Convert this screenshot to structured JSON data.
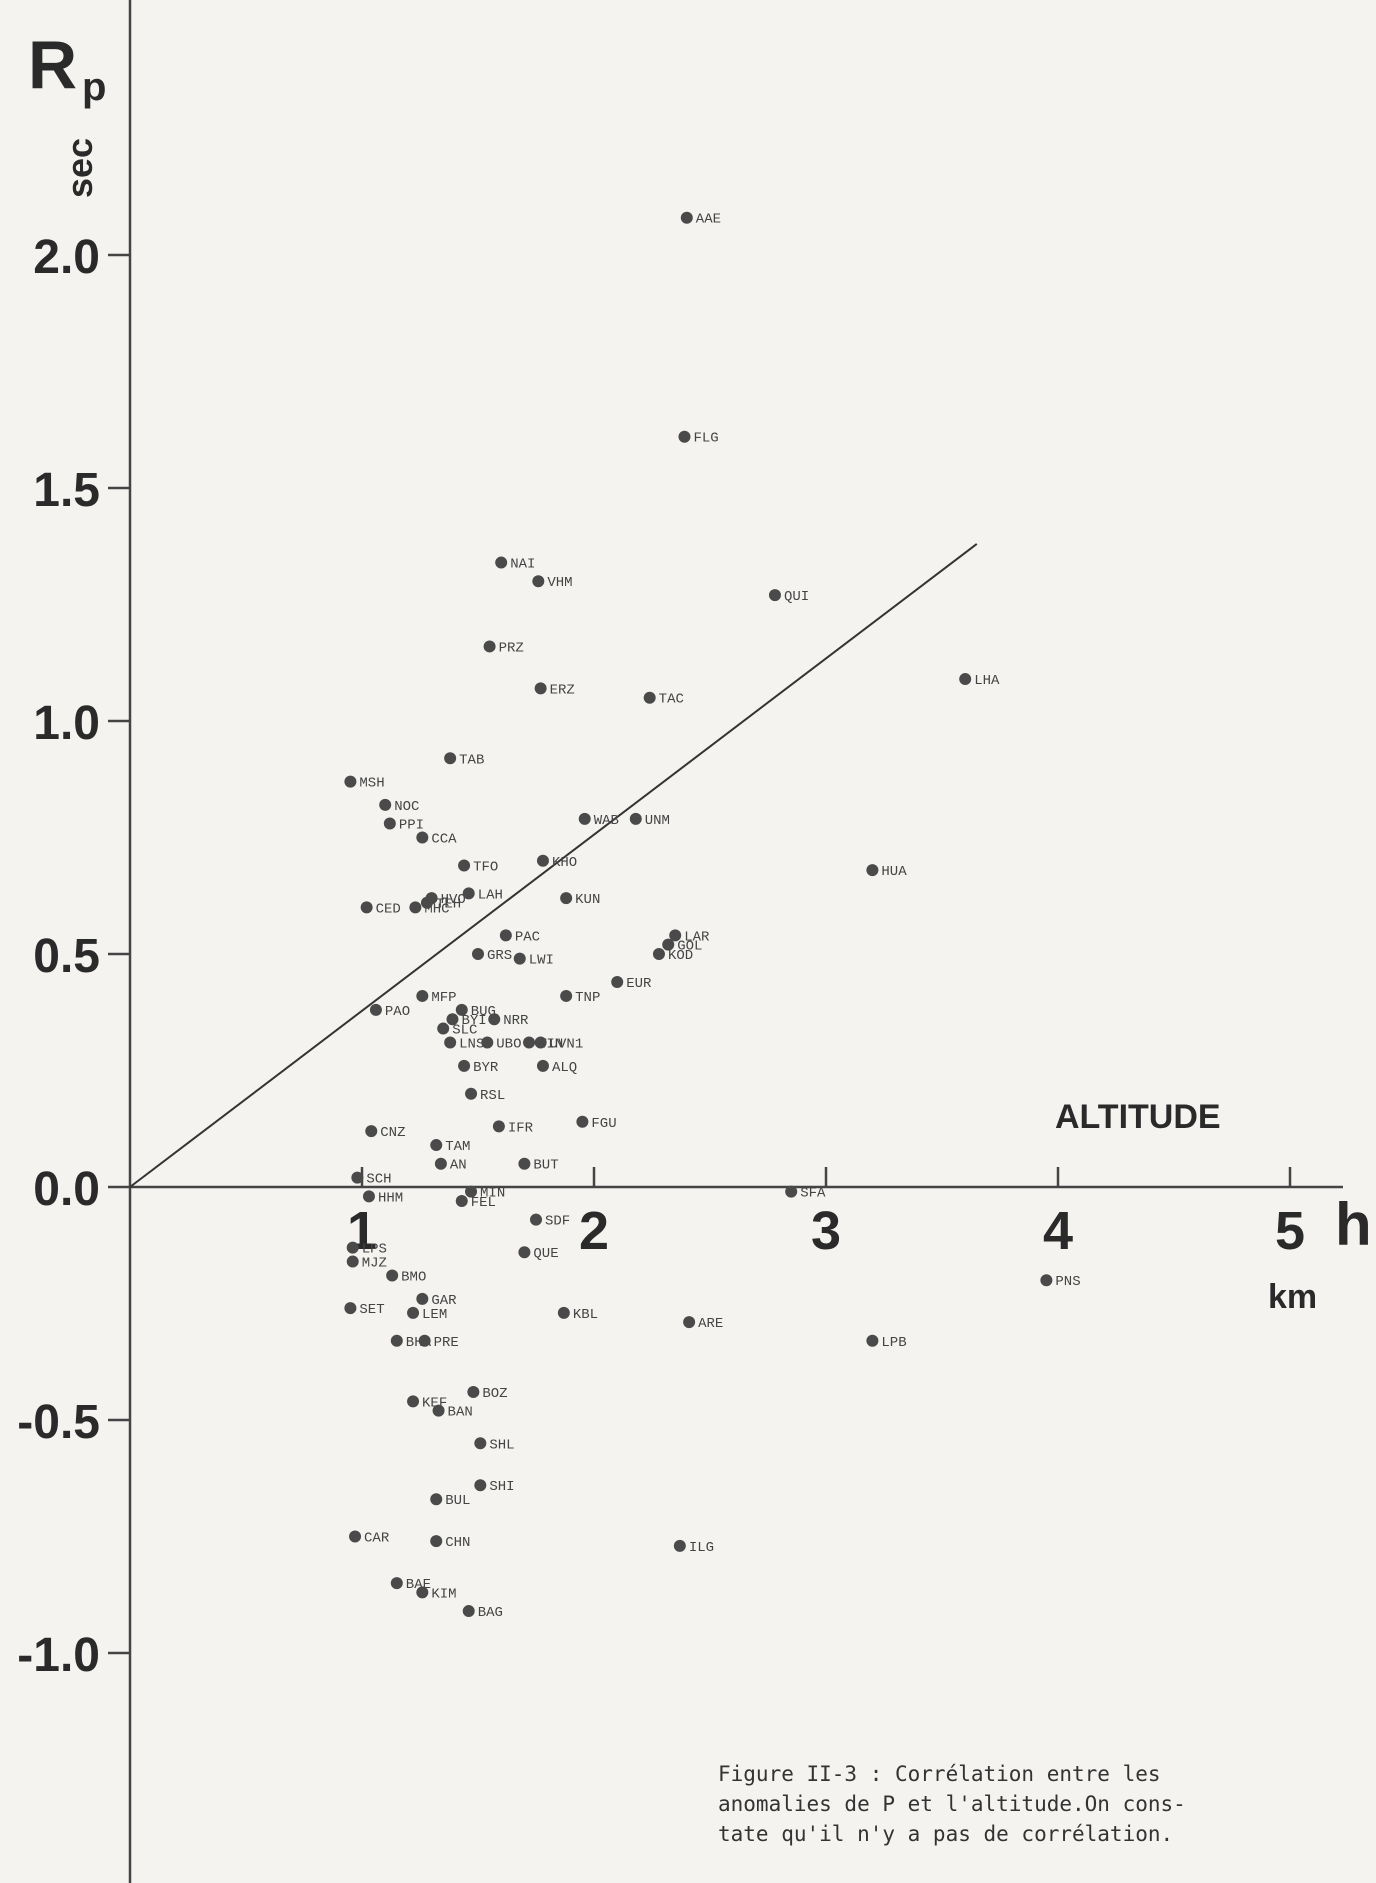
{
  "chart_data": {
    "type": "scatter",
    "y_axis_label_main": "R",
    "y_axis_label_sub": "p",
    "y_unit": "sec",
    "x_axis_title": "ALTITUDE",
    "x_axis_symbol": "h",
    "x_unit": "km",
    "y_ticks": [
      "2.0",
      "1.5",
      "1.0",
      "0.5",
      "0.0",
      "-0.5",
      "-1.0"
    ],
    "x_ticks": [
      "1",
      "2",
      "3",
      "4",
      "5"
    ],
    "ylim": [
      -1.5,
      2.5
    ],
    "xlim": [
      0,
      5.3
    ],
    "grid": false,
    "trend_line": {
      "x": [
        0,
        3.65
      ],
      "y": [
        0,
        1.38
      ]
    },
    "points": [
      {
        "label": "AAE",
        "x": 2.4,
        "y": 2.08
      },
      {
        "label": "FLG",
        "x": 2.39,
        "y": 1.61
      },
      {
        "label": "NAI",
        "x": 1.6,
        "y": 1.34
      },
      {
        "label": "VHM",
        "x": 1.76,
        "y": 1.3
      },
      {
        "label": "QUI",
        "x": 2.78,
        "y": 1.27
      },
      {
        "label": "PRZ",
        "x": 1.55,
        "y": 1.16
      },
      {
        "label": "ERZ",
        "x": 1.77,
        "y": 1.07
      },
      {
        "label": "TAC",
        "x": 2.24,
        "y": 1.05
      },
      {
        "label": "LHA",
        "x": 3.6,
        "y": 1.09
      },
      {
        "label": "TAB",
        "x": 1.38,
        "y": 0.92
      },
      {
        "label": "MSH",
        "x": 0.95,
        "y": 0.87
      },
      {
        "label": "NOC",
        "x": 1.1,
        "y": 0.82
      },
      {
        "label": "PPI",
        "x": 1.12,
        "y": 0.78
      },
      {
        "label": "CCA",
        "x": 1.26,
        "y": 0.75
      },
      {
        "label": "WAB",
        "x": 1.96,
        "y": 0.79
      },
      {
        "label": "UNM",
        "x": 2.18,
        "y": 0.79
      },
      {
        "label": "TFO",
        "x": 1.44,
        "y": 0.69
      },
      {
        "label": "KHO",
        "x": 1.78,
        "y": 0.7
      },
      {
        "label": "HUA",
        "x": 3.2,
        "y": 0.68
      },
      {
        "label": "HVO",
        "x": 1.3,
        "y": 0.62
      },
      {
        "label": "LAH",
        "x": 1.46,
        "y": 0.63
      },
      {
        "label": "KUN",
        "x": 1.88,
        "y": 0.62
      },
      {
        "label": "CED",
        "x": 1.02,
        "y": 0.6
      },
      {
        "label": "MHC",
        "x": 1.23,
        "y": 0.6
      },
      {
        "label": "TEH",
        "x": 1.28,
        "y": 0.61
      },
      {
        "label": "LAR",
        "x": 2.35,
        "y": 0.54
      },
      {
        "label": "PAC",
        "x": 1.62,
        "y": 0.54
      },
      {
        "label": "GOL",
        "x": 2.32,
        "y": 0.52
      },
      {
        "label": "KOD",
        "x": 2.28,
        "y": 0.5
      },
      {
        "label": "GRS",
        "x": 1.5,
        "y": 0.5
      },
      {
        "label": "LWI",
        "x": 1.68,
        "y": 0.49
      },
      {
        "label": "EUR",
        "x": 2.1,
        "y": 0.44
      },
      {
        "label": "MFP",
        "x": 1.26,
        "y": 0.41
      },
      {
        "label": "TNP",
        "x": 1.88,
        "y": 0.41
      },
      {
        "label": "BUG",
        "x": 1.43,
        "y": 0.38
      },
      {
        "label": "PAO",
        "x": 1.06,
        "y": 0.38
      },
      {
        "label": "BYI",
        "x": 1.39,
        "y": 0.36
      },
      {
        "label": "NRR",
        "x": 1.57,
        "y": 0.36
      },
      {
        "label": "SLC",
        "x": 1.35,
        "y": 0.34
      },
      {
        "label": "LNS",
        "x": 1.38,
        "y": 0.31
      },
      {
        "label": "UBO",
        "x": 1.54,
        "y": 0.31
      },
      {
        "label": "WIN",
        "x": 1.72,
        "y": 0.31
      },
      {
        "label": "UVN1",
        "x": 1.77,
        "y": 0.31
      },
      {
        "label": "BYR",
        "x": 1.44,
        "y": 0.26
      },
      {
        "label": "ALQ",
        "x": 1.78,
        "y": 0.26
      },
      {
        "label": "RSL",
        "x": 1.47,
        "y": 0.2
      },
      {
        "label": "CNZ",
        "x": 1.04,
        "y": 0.12
      },
      {
        "label": "IFR",
        "x": 1.59,
        "y": 0.13
      },
      {
        "label": "FGU",
        "x": 1.95,
        "y": 0.14
      },
      {
        "label": "TAM",
        "x": 1.32,
        "y": 0.09
      },
      {
        "label": "AN",
        "x": 1.34,
        "y": 0.05
      },
      {
        "label": "BUT",
        "x": 1.7,
        "y": 0.05
      },
      {
        "label": "SCH",
        "x": 0.98,
        "y": 0.02
      },
      {
        "label": "SFA",
        "x": 2.85,
        "y": -0.01
      },
      {
        "label": "HHM",
        "x": 1.03,
        "y": -0.02
      },
      {
        "label": "MIN",
        "x": 1.47,
        "y": -0.01
      },
      {
        "label": "FEL",
        "x": 1.43,
        "y": -0.03
      },
      {
        "label": "SDF",
        "x": 1.75,
        "y": -0.07
      },
      {
        "label": "LPS",
        "x": 0.96,
        "y": -0.13
      },
      {
        "label": "QUE",
        "x": 1.7,
        "y": -0.14
      },
      {
        "label": "MJZ",
        "x": 0.96,
        "y": -0.16
      },
      {
        "label": "BMO",
        "x": 1.13,
        "y": -0.19
      },
      {
        "label": "PNS",
        "x": 3.95,
        "y": -0.2
      },
      {
        "label": "GAR",
        "x": 1.26,
        "y": -0.24
      },
      {
        "label": "SET",
        "x": 0.95,
        "y": -0.26
      },
      {
        "label": "LEM",
        "x": 1.22,
        "y": -0.27
      },
      {
        "label": "KBL",
        "x": 1.87,
        "y": -0.27
      },
      {
        "label": "ARE",
        "x": 2.41,
        "y": -0.29
      },
      {
        "label": "BHA",
        "x": 1.15,
        "y": -0.33
      },
      {
        "label": "PRE",
        "x": 1.27,
        "y": -0.33
      },
      {
        "label": "LPB",
        "x": 3.2,
        "y": -0.33
      },
      {
        "label": "BOZ",
        "x": 1.48,
        "y": -0.44
      },
      {
        "label": "KEF",
        "x": 1.22,
        "y": -0.46
      },
      {
        "label": "BAN",
        "x": 1.33,
        "y": -0.48
      },
      {
        "label": "SHL",
        "x": 1.51,
        "y": -0.55
      },
      {
        "label": "SHI",
        "x": 1.51,
        "y": -0.64
      },
      {
        "label": "BUL",
        "x": 1.32,
        "y": -0.67
      },
      {
        "label": "CAR",
        "x": 0.97,
        "y": -0.75
      },
      {
        "label": "CHN",
        "x": 1.32,
        "y": -0.76
      },
      {
        "label": "ILG",
        "x": 2.37,
        "y": -0.77
      },
      {
        "label": "BAE",
        "x": 1.15,
        "y": -0.85
      },
      {
        "label": "KIM",
        "x": 1.26,
        "y": -0.87
      },
      {
        "label": "BAG",
        "x": 1.46,
        "y": -0.91
      }
    ]
  },
  "caption": {
    "line1": "Figure II-3 : Corrélation entre les",
    "line2": "anomalies de P et l'altitude.On cons-",
    "line3": "tate qu'il n'y a pas de corrélation."
  }
}
